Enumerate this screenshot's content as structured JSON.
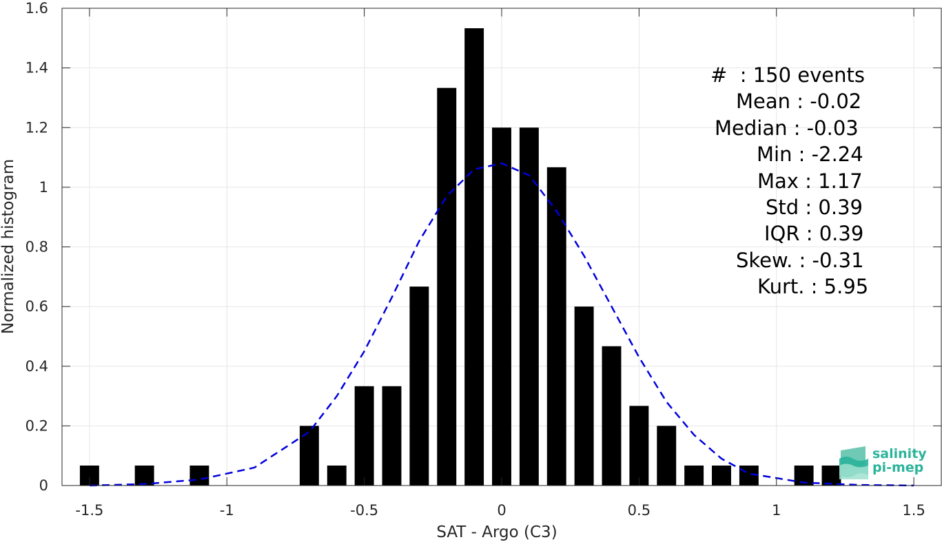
{
  "chart_data": {
    "type": "bar",
    "xlabel": "SAT - Argo (C3)",
    "ylabel": "Normalized histogram",
    "xlim": [
      -1.6,
      1.6
    ],
    "ylim": [
      0,
      1.6
    ],
    "grid": true,
    "x_ticks": [
      -1.5,
      -1,
      -0.5,
      0,
      0.5,
      1,
      1.5
    ],
    "x_tick_labels": [
      "-1.5",
      "-1",
      "-0.5",
      "0",
      "0.5",
      "1",
      "1.5"
    ],
    "y_ticks": [
      0,
      0.2,
      0.4,
      0.6,
      0.8,
      1,
      1.2,
      1.4,
      1.6
    ],
    "y_tick_labels": [
      "0",
      "0.2",
      "0.4",
      "0.6",
      "0.8",
      "1",
      "1.2",
      "1.4",
      "1.6"
    ],
    "bin_width": 0.1,
    "bar_color": "#000000",
    "bars": [
      {
        "x": -1.5,
        "value": 0.067
      },
      {
        "x": -1.3,
        "value": 0.067
      },
      {
        "x": -1.1,
        "value": 0.067
      },
      {
        "x": -0.7,
        "value": 0.2
      },
      {
        "x": -0.6,
        "value": 0.067
      },
      {
        "x": -0.5,
        "value": 0.333
      },
      {
        "x": -0.4,
        "value": 0.333
      },
      {
        "x": -0.3,
        "value": 0.667
      },
      {
        "x": -0.2,
        "value": 1.333
      },
      {
        "x": -0.1,
        "value": 1.533
      },
      {
        "x": 0.0,
        "value": 1.2
      },
      {
        "x": 0.1,
        "value": 1.2
      },
      {
        "x": 0.2,
        "value": 1.067
      },
      {
        "x": 0.3,
        "value": 0.6
      },
      {
        "x": 0.4,
        "value": 0.467
      },
      {
        "x": 0.5,
        "value": 0.267
      },
      {
        "x": 0.6,
        "value": 0.2
      },
      {
        "x": 0.7,
        "value": 0.067
      },
      {
        "x": 0.8,
        "value": 0.067
      },
      {
        "x": 0.9,
        "value": 0.067
      },
      {
        "x": 1.1,
        "value": 0.067
      },
      {
        "x": 1.2,
        "value": 0.067
      }
    ],
    "fit_curve": {
      "style": "dashed",
      "color": "#0000dd",
      "x": [
        -1.5,
        -1.3,
        -1.1,
        -0.9,
        -0.7,
        -0.6,
        -0.5,
        -0.4,
        -0.3,
        -0.2,
        -0.1,
        0.0,
        0.1,
        0.2,
        0.3,
        0.4,
        0.5,
        0.6,
        0.7,
        0.8,
        0.9,
        1.1,
        1.3,
        1.5
      ],
      "y": [
        0.0,
        0.005,
        0.02,
        0.06,
        0.18,
        0.3,
        0.45,
        0.63,
        0.82,
        0.97,
        1.06,
        1.08,
        1.04,
        0.92,
        0.77,
        0.6,
        0.43,
        0.28,
        0.17,
        0.09,
        0.04,
        0.01,
        0.002,
        0.0
      ]
    }
  },
  "stats": {
    "events": "#  : 150 events",
    "mean": "Mean : -0.02",
    "median": "Median : -0.03",
    "min": "Min : -2.24",
    "max": "Max : 1.17",
    "std": "Std : 0.39",
    "iqr": "IQR : 0.39",
    "skew": "Skew. : -0.31",
    "kurt": "Kurt. : 5.95"
  },
  "logo": {
    "line1": "salinity",
    "line2": "pi-mep",
    "color": "#2bb39a"
  }
}
